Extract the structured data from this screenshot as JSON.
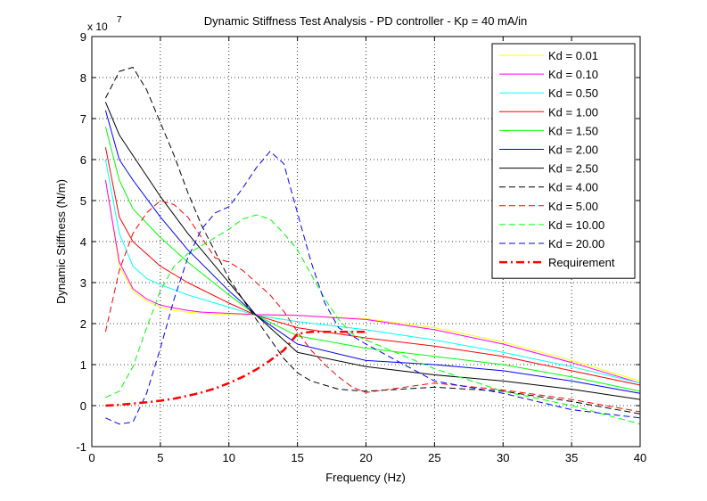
{
  "chart_data": {
    "type": "line",
    "title": "Dynamic Stiffness Test Analysis - PD controller - Kp = 40 mA/in",
    "xlabel": "Frequency (Hz)",
    "ylabel": "Dynamic Stiffness (N/m)",
    "y_exponent_label": "x 10",
    "y_exponent_power": "7",
    "xlim": [
      0,
      40
    ],
    "ylim": [
      -1,
      9
    ],
    "xticks": [
      0,
      5,
      10,
      15,
      20,
      25,
      30,
      35,
      40
    ],
    "yticks": [
      -1,
      0,
      1,
      2,
      3,
      4,
      5,
      6,
      7,
      8,
      9
    ],
    "grid": true,
    "legend_position": "top-right",
    "series": [
      {
        "name": "Kd = 0.01",
        "color": "#ffff00",
        "dash": "solid",
        "x": [
          1,
          2,
          3,
          4,
          5,
          6,
          7,
          8,
          10,
          12,
          15,
          20,
          25,
          30,
          35,
          40
        ],
        "y": [
          5.5,
          3.4,
          2.8,
          2.55,
          2.4,
          2.32,
          2.28,
          2.25,
          2.22,
          2.2,
          2.2,
          2.12,
          1.9,
          1.55,
          1.1,
          0.6
        ]
      },
      {
        "name": "Kd = 0.10",
        "color": "#ff00ff",
        "dash": "solid",
        "x": [
          1,
          2,
          3,
          4,
          5,
          6,
          7,
          8,
          10,
          12,
          15,
          20,
          25,
          30,
          35,
          40
        ],
        "y": [
          5.5,
          3.5,
          2.85,
          2.6,
          2.45,
          2.38,
          2.32,
          2.28,
          2.25,
          2.22,
          2.2,
          2.1,
          1.85,
          1.5,
          1.05,
          0.55
        ]
      },
      {
        "name": "Kd = 0.50",
        "color": "#00ffff",
        "dash": "solid",
        "x": [
          1,
          2,
          3,
          4,
          5,
          7,
          10,
          12,
          15,
          20,
          25,
          30,
          35,
          40
        ],
        "y": [
          6.0,
          4.2,
          3.4,
          3.1,
          2.95,
          2.7,
          2.4,
          2.2,
          2.05,
          1.85,
          1.6,
          1.3,
          0.95,
          0.55
        ]
      },
      {
        "name": "Kd = 1.00",
        "color": "#ff0000",
        "dash": "solid",
        "x": [
          1,
          2,
          3,
          5,
          7,
          10,
          12,
          15,
          20,
          25,
          30,
          35,
          40
        ],
        "y": [
          6.3,
          4.6,
          4.0,
          3.4,
          3.0,
          2.5,
          2.2,
          1.9,
          1.65,
          1.45,
          1.2,
          0.85,
          0.5
        ]
      },
      {
        "name": "Kd = 1.50",
        "color": "#00ff00",
        "dash": "solid",
        "x": [
          1,
          2,
          3,
          5,
          7,
          10,
          12,
          15,
          20,
          25,
          30,
          35,
          40
        ],
        "y": [
          6.8,
          5.5,
          4.8,
          4.1,
          3.5,
          2.7,
          2.2,
          1.7,
          1.4,
          1.2,
          1.0,
          0.7,
          0.35
        ]
      },
      {
        "name": "Kd = 2.00",
        "color": "#0000ff",
        "dash": "solid",
        "x": [
          1,
          2,
          3,
          5,
          7,
          10,
          12,
          15,
          20,
          25,
          30,
          35,
          40
        ],
        "y": [
          7.2,
          6.0,
          5.5,
          4.6,
          3.8,
          2.8,
          2.2,
          1.5,
          1.1,
          1.0,
          0.85,
          0.6,
          0.3
        ]
      },
      {
        "name": "Kd = 2.50",
        "color": "#000000",
        "dash": "solid",
        "x": [
          1,
          2,
          3,
          5,
          7,
          10,
          12,
          15,
          20,
          25,
          30,
          35,
          40
        ],
        "y": [
          7.4,
          6.6,
          6.1,
          5.1,
          4.2,
          3.0,
          2.2,
          1.3,
          0.95,
          0.75,
          0.6,
          0.4,
          0.15
        ]
      },
      {
        "name": "Kd = 4.00",
        "color": "#000000",
        "dash": "dashed",
        "x": [
          1,
          2,
          3,
          4,
          5,
          6,
          7,
          8,
          10,
          12,
          14,
          15,
          16,
          18,
          20,
          25,
          30,
          35,
          40
        ],
        "y": [
          7.5,
          8.15,
          8.25,
          7.7,
          6.9,
          6.1,
          5.2,
          4.4,
          3.1,
          2.1,
          1.15,
          0.8,
          0.6,
          0.4,
          0.35,
          0.45,
          0.35,
          0.1,
          -0.2
        ]
      },
      {
        "name": "Kd = 5.00",
        "color": "#ff0000",
        "dash": "dashed",
        "x": [
          1,
          2,
          3,
          4,
          5,
          6,
          7,
          8,
          9,
          10,
          11,
          12,
          13,
          14,
          15,
          16,
          17,
          18,
          19,
          20,
          25,
          30,
          35,
          40
        ],
        "y": [
          1.8,
          3.3,
          4.2,
          4.7,
          5.0,
          4.9,
          4.6,
          4.1,
          3.6,
          3.5,
          3.3,
          3.0,
          2.7,
          2.3,
          1.8,
          1.35,
          1.0,
          0.7,
          0.45,
          0.32,
          0.55,
          0.38,
          0.15,
          -0.15
        ]
      },
      {
        "name": "Kd = 10.00",
        "color": "#00ff00",
        "dash": "dashed",
        "x": [
          1,
          2,
          3,
          4,
          5,
          6,
          7,
          8,
          9,
          10,
          11,
          12,
          13,
          14,
          15,
          16,
          17,
          18,
          19,
          20,
          25,
          30,
          35,
          40
        ],
        "y": [
          0.2,
          0.35,
          0.95,
          1.9,
          2.8,
          3.4,
          3.7,
          3.9,
          4.1,
          4.3,
          4.55,
          4.65,
          4.55,
          4.2,
          3.8,
          3.2,
          2.6,
          2.1,
          1.75,
          1.6,
          0.9,
          0.35,
          0.0,
          -0.45
        ]
      },
      {
        "name": "Kd = 20.00",
        "color": "#0000ff",
        "dash": "dashed",
        "x": [
          1,
          2,
          3,
          4,
          5,
          6,
          7,
          8,
          9,
          10,
          11,
          12,
          13,
          14,
          15,
          16,
          17,
          18,
          19,
          20,
          25,
          30,
          35,
          40
        ],
        "y": [
          -0.3,
          -0.45,
          -0.4,
          0.3,
          1.4,
          2.6,
          3.6,
          4.3,
          4.7,
          4.85,
          5.3,
          5.8,
          6.2,
          5.9,
          4.7,
          3.5,
          2.5,
          1.9,
          1.7,
          1.5,
          0.6,
          0.3,
          -0.1,
          -0.3
        ]
      },
      {
        "name": "Requirement",
        "color": "#ff0000",
        "dash": "dashdot",
        "width": 2.5,
        "x": [
          1,
          2,
          3,
          4,
          5,
          6,
          7,
          8,
          9,
          10,
          11,
          12,
          13,
          14,
          15,
          16,
          17,
          18,
          19,
          20
        ],
        "y": [
          0.0,
          0.02,
          0.05,
          0.08,
          0.12,
          0.17,
          0.24,
          0.32,
          0.42,
          0.55,
          0.7,
          0.88,
          1.1,
          1.35,
          1.75,
          1.8,
          1.8,
          1.8,
          1.8,
          1.8
        ]
      }
    ]
  }
}
